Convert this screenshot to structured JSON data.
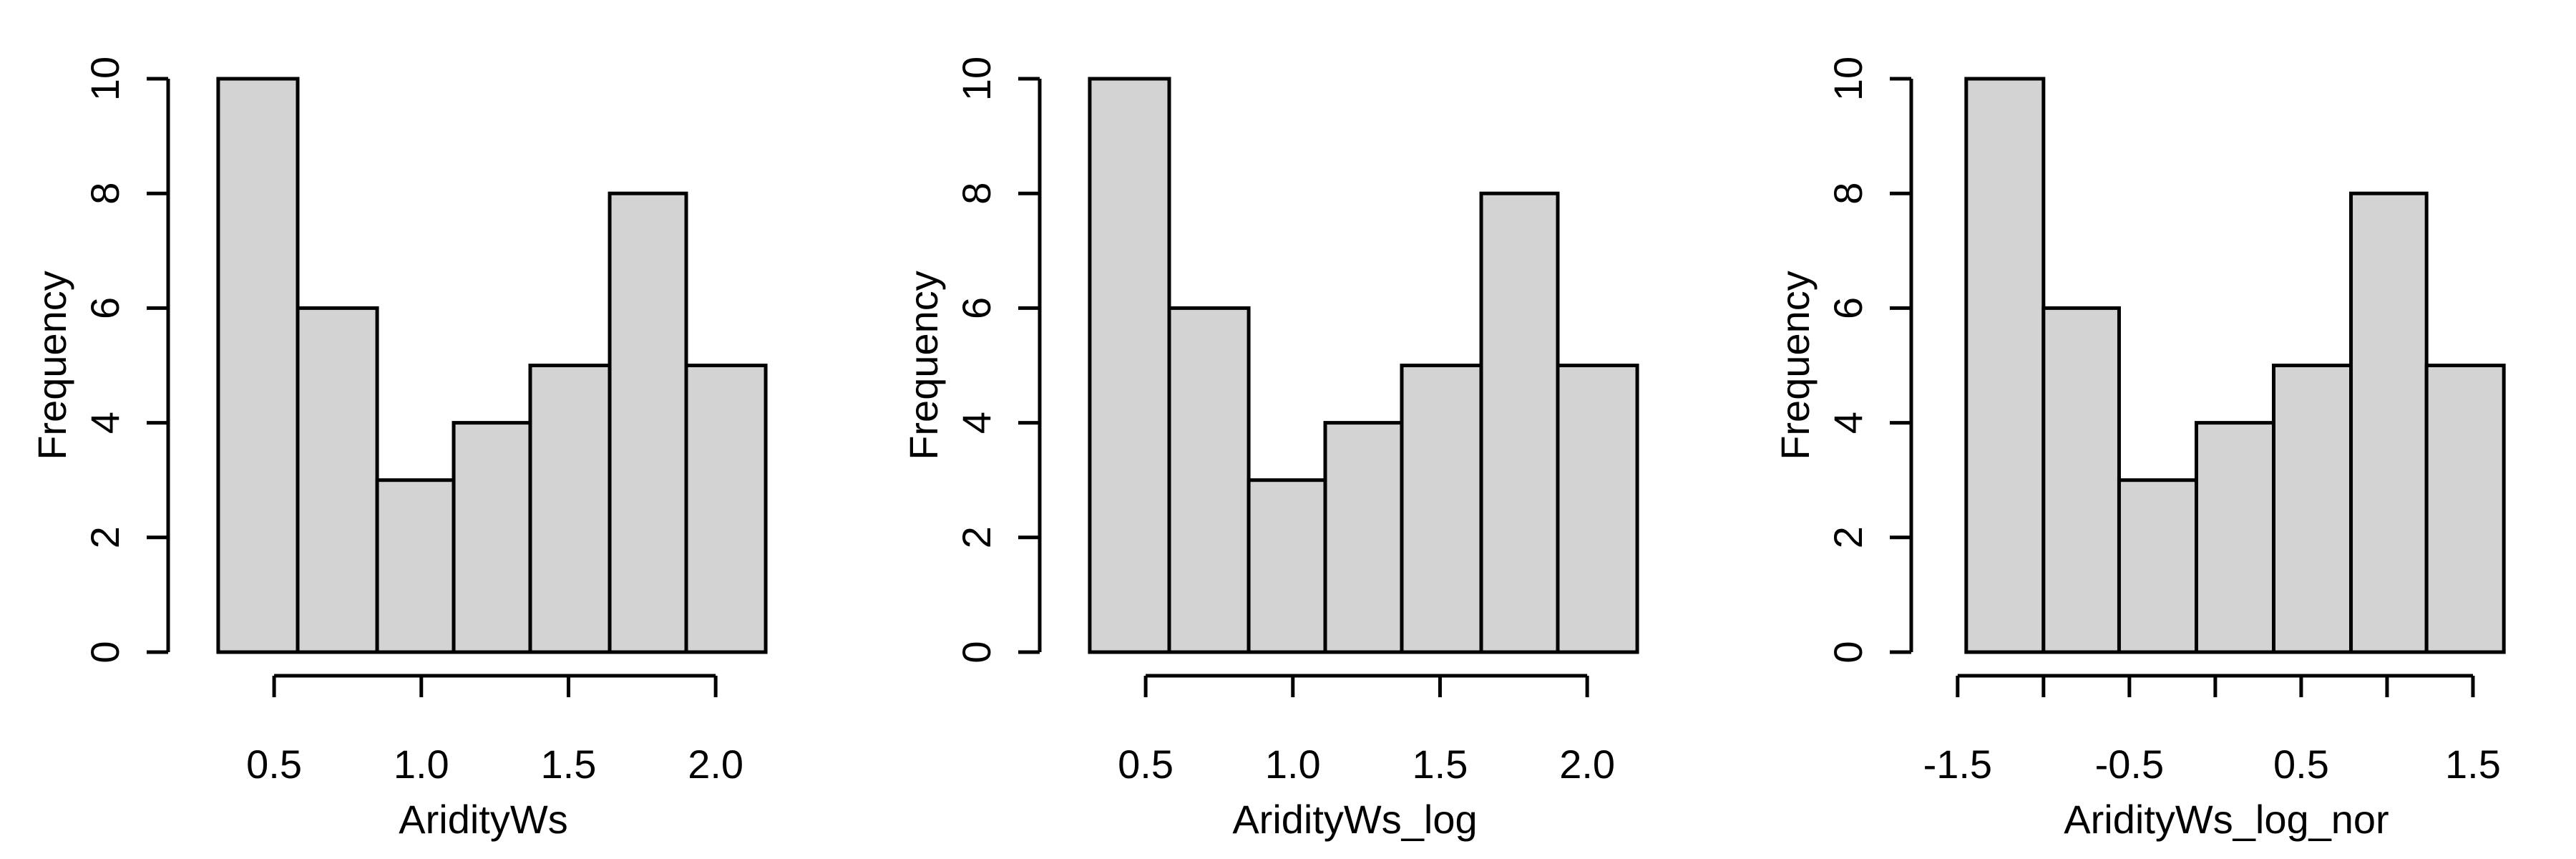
{
  "chart_data": [
    {
      "type": "histogram",
      "xlabel": "AridityWs",
      "ylabel": "Frequency",
      "bins": [
        0.31,
        0.58,
        0.85,
        1.11,
        1.37,
        1.64,
        1.9,
        2.17
      ],
      "counts": [
        10,
        6,
        3,
        4,
        5,
        8,
        5
      ],
      "color": "#d3d3d3",
      "xlim": [
        0.14,
        2.34
      ],
      "xticks": [
        0.5,
        {
          "value": 1,
          "label": "1.0"
        },
        1.5,
        {
          "value": 2,
          "label": "2.0"
        }
      ],
      "ylim": [
        0,
        10
      ],
      "yticks": [
        0,
        2,
        4,
        6,
        8,
        10
      ]
    },
    {
      "type": "histogram",
      "xlabel": "AridityWs_log",
      "ylabel": "Frequency",
      "bins": [
        0.31,
        0.58,
        0.85,
        1.11,
        1.37,
        1.64,
        1.9,
        2.17
      ],
      "counts": [
        10,
        6,
        3,
        4,
        5,
        8,
        5
      ],
      "color": "#d3d3d3",
      "xlim": [
        0.14,
        2.34
      ],
      "xticks": [
        0.5,
        {
          "value": 1,
          "label": "1.0"
        },
        1.5,
        {
          "value": 2,
          "label": "2.0"
        }
      ],
      "ylim": [
        0,
        10
      ],
      "yticks": [
        0,
        2,
        4,
        6,
        8,
        10
      ]
    },
    {
      "type": "histogram",
      "xlabel": "AridityWs_log_nor",
      "ylabel": "Frequency",
      "bins": [
        -1.45,
        -1.0,
        -0.56,
        -0.11,
        0.34,
        0.79,
        1.23,
        1.68
      ],
      "counts": [
        10,
        6,
        3,
        4,
        5,
        8,
        5
      ],
      "color": "#d3d3d3",
      "xlim": [
        -1.77,
        2.0
      ],
      "xticks": [
        -1.5,
        -0.5,
        0.5,
        1.5
      ],
      "xticks_unlabeled": [
        -1,
        0,
        1
      ],
      "ylim": [
        0,
        10
      ],
      "yticks": [
        0,
        2,
        4,
        6,
        8,
        10
      ]
    }
  ]
}
